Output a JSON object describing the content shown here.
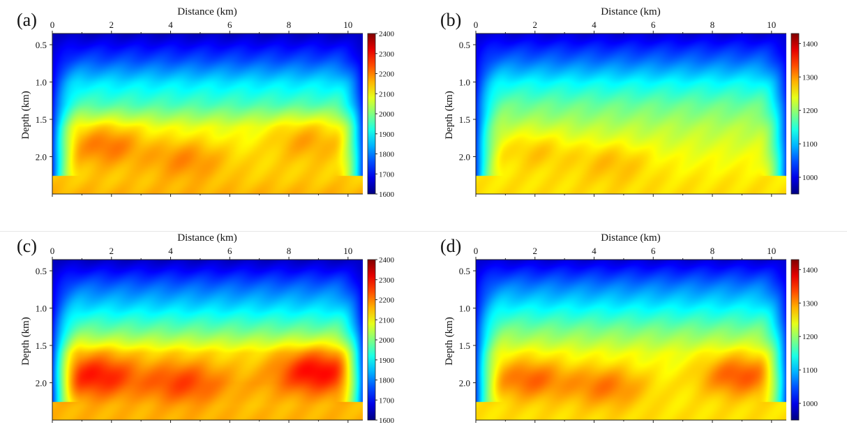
{
  "chart_data": [
    {
      "type": "heatmap",
      "panel_label": "(a)",
      "xlabel": "Distance (km)",
      "ylabel": "Depth (km)",
      "xlim": [
        0,
        10.5
      ],
      "ylim": [
        0.35,
        2.5
      ],
      "x_ticks": [
        "0",
        "2",
        "4",
        "6",
        "8",
        "10"
      ],
      "y_ticks": [
        "0.5",
        "1.0",
        "1.5",
        "2.0"
      ],
      "colorbar": {
        "min": 1600,
        "max": 2400,
        "ticks": [
          "2400",
          "2300",
          "2200",
          "2100",
          "2000",
          "1900",
          "1800",
          "1700",
          "1600"
        ]
      },
      "colormap": "jet",
      "layers": [
        {
          "depth": 0.35,
          "value": 1650
        },
        {
          "depth": 0.7,
          "value": 1760
        },
        {
          "depth": 1.0,
          "value": 1880
        },
        {
          "depth": 1.3,
          "value": 1960
        },
        {
          "depth": 1.6,
          "value": 2080
        },
        {
          "depth": 2.0,
          "value": 2120
        },
        {
          "depth": 2.3,
          "value": 2140
        },
        {
          "depth": 2.5,
          "value": 2160
        }
      ],
      "side_taper": 1.0,
      "anomalies": [
        {
          "x": 1.8,
          "depth": 1.85,
          "value": 2220
        },
        {
          "x": 4.5,
          "depth": 2.05,
          "value": 2200
        },
        {
          "x": 8.6,
          "depth": 1.8,
          "value": 2180
        }
      ]
    },
    {
      "type": "heatmap",
      "panel_label": "(b)",
      "xlabel": "Distance (km)",
      "ylabel": "Depth (km)",
      "xlim": [
        0,
        10.5
      ],
      "ylim": [
        0.35,
        2.5
      ],
      "x_ticks": [
        "0",
        "2",
        "4",
        "6",
        "8",
        "10"
      ],
      "y_ticks": [
        "0.5",
        "1.0",
        "1.5",
        "2.0"
      ],
      "colorbar": {
        "min": 950,
        "max": 1430,
        "ticks": [
          "1400",
          "1300",
          "1200",
          "1100",
          "1000"
        ]
      },
      "colormap": "jet",
      "layers": [
        {
          "depth": 0.35,
          "value": 990
        },
        {
          "depth": 0.7,
          "value": 1060
        },
        {
          "depth": 1.0,
          "value": 1130
        },
        {
          "depth": 1.3,
          "value": 1180
        },
        {
          "depth": 1.6,
          "value": 1215
        },
        {
          "depth": 2.0,
          "value": 1245
        },
        {
          "depth": 2.3,
          "value": 1260
        },
        {
          "depth": 2.5,
          "value": 1265
        }
      ],
      "side_taper": 1.0,
      "anomalies": [
        {
          "x": 2.0,
          "depth": 1.95,
          "value": 1280
        },
        {
          "x": 4.6,
          "depth": 2.1,
          "value": 1285
        }
      ]
    },
    {
      "type": "heatmap",
      "panel_label": "(c)",
      "xlabel": "Distance (km)",
      "ylabel": "Depth (km)",
      "xlim": [
        0,
        10.5
      ],
      "ylim": [
        0.35,
        2.5
      ],
      "x_ticks": [
        "0",
        "2",
        "4",
        "6",
        "8",
        "10"
      ],
      "y_ticks": [
        "0.5",
        "1.0",
        "1.5",
        "2.0"
      ],
      "colorbar": {
        "min": 1600,
        "max": 2400,
        "ticks": [
          "2400",
          "2300",
          "2200",
          "2100",
          "2000",
          "1900",
          "1800",
          "1700",
          "1600"
        ]
      },
      "colormap": "jet",
      "layers": [
        {
          "depth": 0.35,
          "value": 1650
        },
        {
          "depth": 0.7,
          "value": 1780
        },
        {
          "depth": 1.0,
          "value": 1880
        },
        {
          "depth": 1.3,
          "value": 1990
        },
        {
          "depth": 1.6,
          "value": 2120
        },
        {
          "depth": 2.0,
          "value": 2160
        },
        {
          "depth": 2.3,
          "value": 2150
        },
        {
          "depth": 2.5,
          "value": 2160
        }
      ],
      "side_taper": 1.0,
      "anomalies": [
        {
          "x": 1.5,
          "depth": 1.9,
          "value": 2300
        },
        {
          "x": 4.4,
          "depth": 2.0,
          "value": 2260
        },
        {
          "x": 8.9,
          "depth": 1.85,
          "value": 2320
        }
      ]
    },
    {
      "type": "heatmap",
      "panel_label": "(d)",
      "xlabel": "Distance (km)",
      "ylabel": "Depth (km)",
      "xlim": [
        0,
        10.5
      ],
      "ylim": [
        0.35,
        2.5
      ],
      "x_ticks": [
        "0",
        "2",
        "4",
        "6",
        "8",
        "10"
      ],
      "y_ticks": [
        "0.5",
        "1.0",
        "1.5",
        "2.0"
      ],
      "colorbar": {
        "min": 950,
        "max": 1430,
        "ticks": [
          "1400",
          "1300",
          "1200",
          "1100",
          "1000"
        ]
      },
      "colormap": "jet",
      "layers": [
        {
          "depth": 0.35,
          "value": 990
        },
        {
          "depth": 0.7,
          "value": 1070
        },
        {
          "depth": 1.0,
          "value": 1130
        },
        {
          "depth": 1.3,
          "value": 1190
        },
        {
          "depth": 1.6,
          "value": 1240
        },
        {
          "depth": 2.0,
          "value": 1255
        },
        {
          "depth": 2.3,
          "value": 1260
        },
        {
          "depth": 2.5,
          "value": 1265
        }
      ],
      "side_taper": 1.0,
      "anomalies": [
        {
          "x": 1.8,
          "depth": 1.95,
          "value": 1330
        },
        {
          "x": 4.4,
          "depth": 2.05,
          "value": 1320
        },
        {
          "x": 8.9,
          "depth": 1.9,
          "value": 1340
        }
      ]
    }
  ]
}
